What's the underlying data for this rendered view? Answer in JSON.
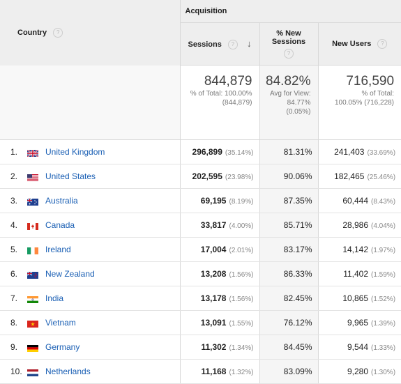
{
  "header": {
    "country_label": "Country",
    "acquisition_label": "Acquisition",
    "sessions_label": "Sessions",
    "new_sessions_label_line1": "% New",
    "new_sessions_label_line2": "Sessions",
    "new_users_label": "New Users",
    "help_glyph": "?",
    "sort_glyph": "↓"
  },
  "totals": {
    "sessions": "844,879",
    "sessions_sub1": "% of Total: 100.00%",
    "sessions_sub2": "(844,879)",
    "new_sessions": "84.82%",
    "new_sessions_sub1": "Avg for View:",
    "new_sessions_sub2": "84.77%",
    "new_sessions_sub3": "(0.05%)",
    "new_users": "716,590",
    "new_users_sub1": "% of Total:",
    "new_users_sub2": "100.05% (716,228)"
  },
  "rows": [
    {
      "rank": "1.",
      "country": "United Kingdom",
      "sessions": "296,899",
      "sessions_pct": "(35.14%)",
      "new_sessions": "81.31%",
      "new_users": "241,403",
      "new_users_pct": "(33.69%)",
      "flag_icon": "flag-uk-icon"
    },
    {
      "rank": "2.",
      "country": "United States",
      "sessions": "202,595",
      "sessions_pct": "(23.98%)",
      "new_sessions": "90.06%",
      "new_users": "182,465",
      "new_users_pct": "(25.46%)",
      "flag_icon": "flag-us-icon"
    },
    {
      "rank": "3.",
      "country": "Australia",
      "sessions": "69,195",
      "sessions_pct": "(8.19%)",
      "new_sessions": "87.35%",
      "new_users": "60,444",
      "new_users_pct": "(8.43%)",
      "flag_icon": "flag-au-icon"
    },
    {
      "rank": "4.",
      "country": "Canada",
      "sessions": "33,817",
      "sessions_pct": "(4.00%)",
      "new_sessions": "85.71%",
      "new_users": "28,986",
      "new_users_pct": "(4.04%)",
      "flag_icon": "flag-ca-icon"
    },
    {
      "rank": "5.",
      "country": "Ireland",
      "sessions": "17,004",
      "sessions_pct": "(2.01%)",
      "new_sessions": "83.17%",
      "new_users": "14,142",
      "new_users_pct": "(1.97%)",
      "flag_icon": "flag-ie-icon"
    },
    {
      "rank": "6.",
      "country": "New Zealand",
      "sessions": "13,208",
      "sessions_pct": "(1.56%)",
      "new_sessions": "86.33%",
      "new_users": "11,402",
      "new_users_pct": "(1.59%)",
      "flag_icon": "flag-nz-icon"
    },
    {
      "rank": "7.",
      "country": "India",
      "sessions": "13,178",
      "sessions_pct": "(1.56%)",
      "new_sessions": "82.45%",
      "new_users": "10,865",
      "new_users_pct": "(1.52%)",
      "flag_icon": "flag-in-icon"
    },
    {
      "rank": "8.",
      "country": "Vietnam",
      "sessions": "13,091",
      "sessions_pct": "(1.55%)",
      "new_sessions": "76.12%",
      "new_users": "9,965",
      "new_users_pct": "(1.39%)",
      "flag_icon": "flag-vn-icon"
    },
    {
      "rank": "9.",
      "country": "Germany",
      "sessions": "11,302",
      "sessions_pct": "(1.34%)",
      "new_sessions": "84.45%",
      "new_users": "9,544",
      "new_users_pct": "(1.33%)",
      "flag_icon": "flag-de-icon"
    },
    {
      "rank": "10.",
      "country": "Netherlands",
      "sessions": "11,168",
      "sessions_pct": "(1.32%)",
      "new_sessions": "83.09%",
      "new_users": "9,280",
      "new_users_pct": "(1.30%)",
      "flag_icon": "flag-nl-icon"
    }
  ],
  "colors": {
    "link": "#1a5fb4",
    "header_bg": "#eeeeee",
    "secondary_col_bg": "#f5f5f5"
  }
}
